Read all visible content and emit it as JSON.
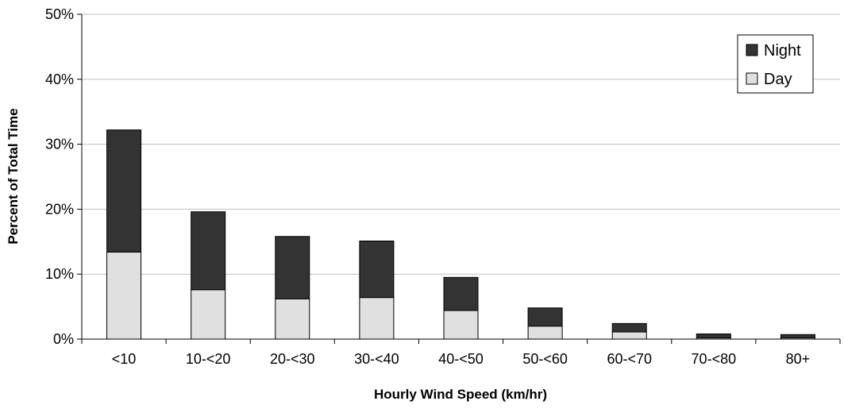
{
  "chart_data": {
    "type": "bar",
    "stacked": true,
    "xlabel": "Hourly Wind Speed (km/hr)",
    "ylabel": "Percent of Total Time",
    "categories": [
      "<10",
      "10-<20",
      "20-<30",
      "30-<40",
      "40-<50",
      "50-<60",
      "60-<70",
      "70-<80",
      "80+"
    ],
    "series": [
      {
        "name": "Day",
        "color": "#e0e0e0",
        "values": [
          13.4,
          7.6,
          6.2,
          6.4,
          4.4,
          2.0,
          1.1,
          0.2,
          0.2
        ]
      },
      {
        "name": "Night",
        "color": "#333333",
        "values": [
          18.8,
          12.0,
          9.6,
          8.7,
          5.1,
          2.8,
          1.3,
          0.6,
          0.5
        ]
      }
    ],
    "ylim": [
      0,
      50
    ],
    "yticks": [
      "0%",
      "10%",
      "20%",
      "30%",
      "40%",
      "50%"
    ],
    "grid": true,
    "legend_position": "top-right"
  }
}
